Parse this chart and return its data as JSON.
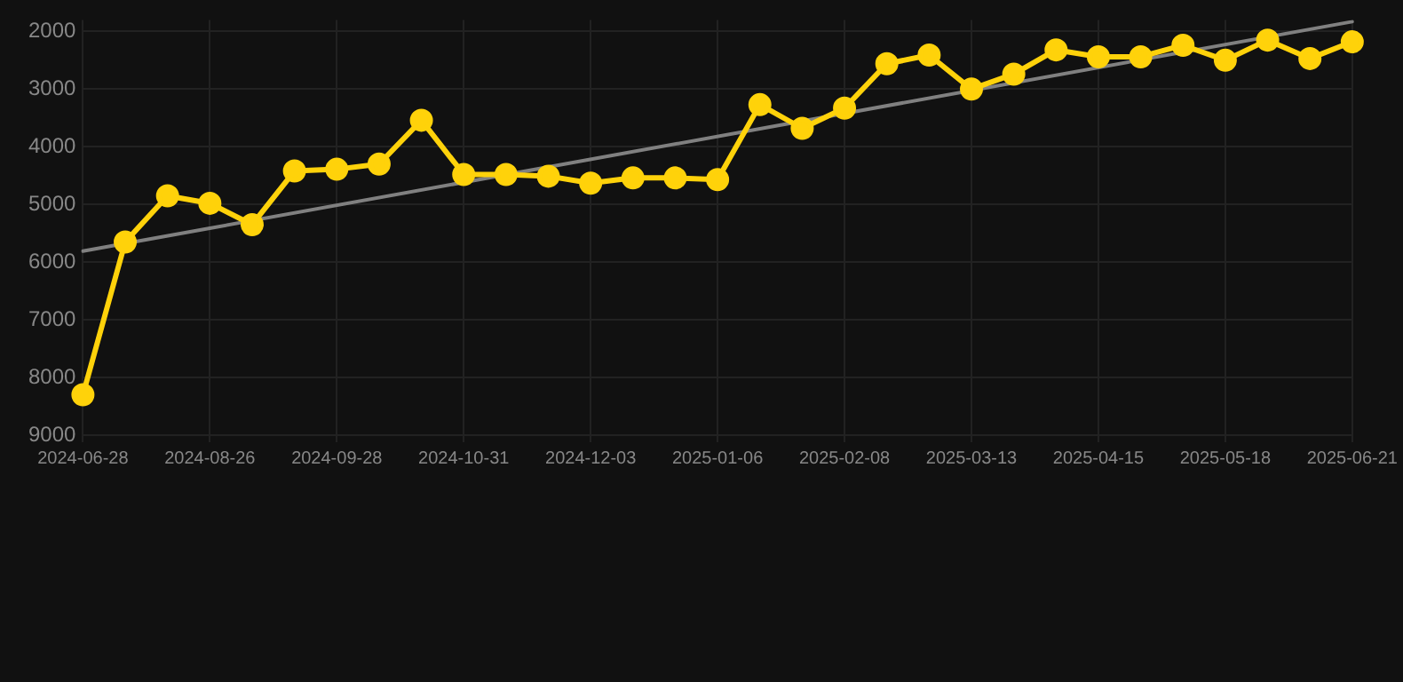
{
  "chart_data": {
    "type": "line",
    "categories": [
      "2024-06-28",
      null,
      null,
      "2024-08-26",
      null,
      null,
      "2024-09-28",
      null,
      null,
      "2024-10-31",
      null,
      null,
      "2024-12-03",
      null,
      null,
      "2025-01-06",
      null,
      null,
      "2025-02-08",
      null,
      null,
      "2025-03-13",
      null,
      null,
      "2025-04-15",
      null,
      null,
      "2025-05-18",
      null,
      null,
      "2025-06-21"
    ],
    "series": [
      {
        "color": "#ffd20a",
        "values": [
          8300,
          5650,
          4850,
          4980,
          5350,
          4420,
          4390,
          4300,
          3540,
          4480,
          4480,
          4510,
          4630,
          4540,
          4540,
          4570,
          3270,
          3680,
          3330,
          2560,
          2410,
          3000,
          2740,
          2320,
          2440,
          2440,
          2240,
          2500,
          2150,
          2470,
          2180
        ]
      },
      {
        "type": "line",
        "color": "#808080",
        "marker": "none",
        "values": [
          5810,
          null,
          null,
          null,
          null,
          null,
          null,
          null,
          null,
          null,
          null,
          null,
          null,
          null,
          null,
          null,
          null,
          null,
          null,
          null,
          null,
          null,
          null,
          null,
          null,
          null,
          null,
          null,
          null,
          null,
          1830
        ]
      }
    ],
    "ylim": [
      9000,
      1800
    ],
    "yticks": [
      2000,
      3000,
      4000,
      5000,
      6000,
      7000,
      8000,
      9000
    ],
    "grid": true,
    "legend": false,
    "marker": "circle",
    "line_style": "solid"
  }
}
